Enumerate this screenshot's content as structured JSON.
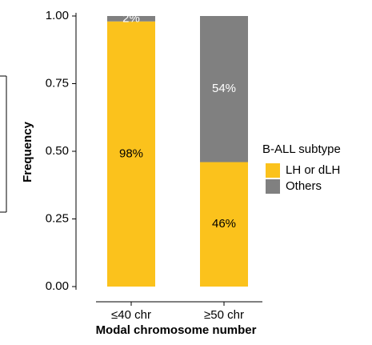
{
  "chart_data": {
    "type": "bar",
    "stacked": true,
    "x_label": "Modal chromosome number",
    "y_label": "Frequency",
    "categories": [
      "≤40 chr",
      "≥50 chr"
    ],
    "series": [
      {
        "name": "LH or dLH",
        "color": "#fbc21c",
        "label_color": "#000000",
        "values": [
          0.98,
          0.46
        ],
        "value_labels": [
          "98%",
          "46%"
        ]
      },
      {
        "name": "Others",
        "color": "#808080",
        "label_color": "#ffffff",
        "values": [
          0.02,
          0.54
        ],
        "value_labels": [
          "2%",
          "54%"
        ]
      }
    ],
    "ylim": [
      0,
      1
    ],
    "yticks": [
      {
        "value": 0,
        "label": "0.00"
      },
      {
        "value": 0.25,
        "label": "0.25"
      },
      {
        "value": 0.5,
        "label": "0.50"
      },
      {
        "value": 0.75,
        "label": "0.75"
      },
      {
        "value": 1,
        "label": "1.00"
      }
    ],
    "legend_title": "B-ALL subtype",
    "legend_position": "right"
  }
}
